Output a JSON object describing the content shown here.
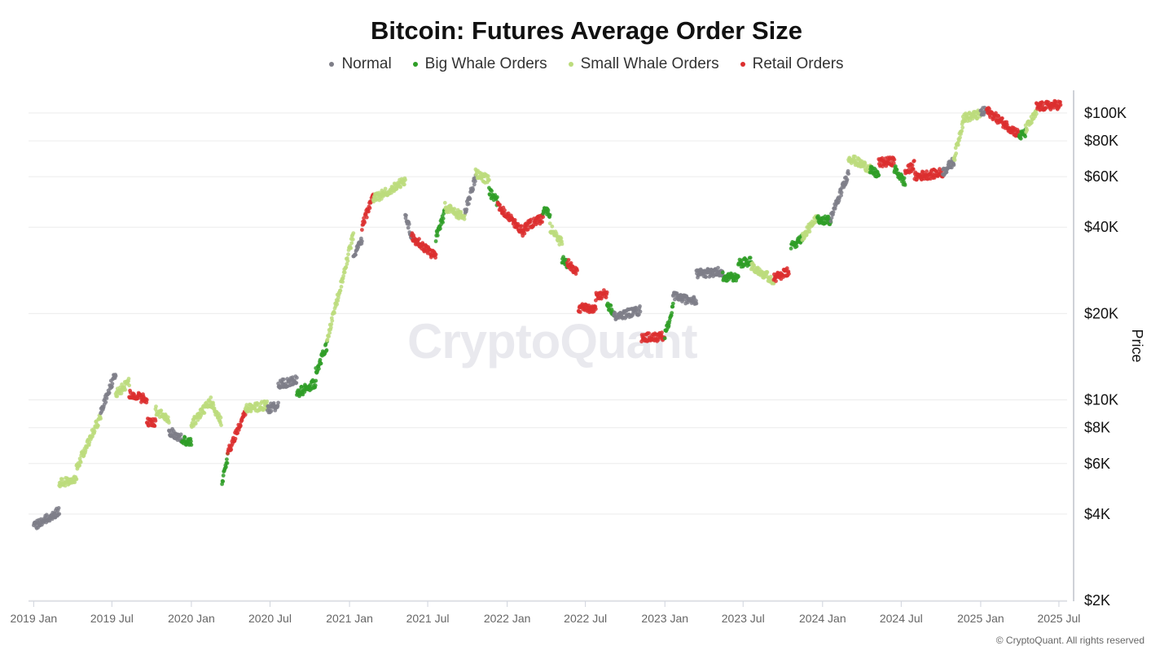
{
  "chart_data": {
    "type": "scatter",
    "title": "Bitcoin: Futures Average Order Size",
    "ylabel": "Price",
    "yscale": "log",
    "ylim": [
      2000,
      120000
    ],
    "xlim": [
      "2018-12-20",
      "2025-07-20"
    ],
    "grid": true,
    "legend_position": "top",
    "x_ticks": [
      "2019 Jan",
      "2019 Jul",
      "2020 Jan",
      "2020 Jul",
      "2021 Jan",
      "2021 Jul",
      "2022 Jan",
      "2022 Jul",
      "2023 Jan",
      "2023 Jul",
      "2024 Jan",
      "2024 Jul",
      "2025 Jan",
      "2025 Jul"
    ],
    "x_tick_dates": [
      "2019-01-01",
      "2019-07-01",
      "2020-01-01",
      "2020-07-01",
      "2021-01-01",
      "2021-07-01",
      "2022-01-01",
      "2022-07-01",
      "2023-01-01",
      "2023-07-01",
      "2024-01-01",
      "2024-07-01",
      "2025-01-01",
      "2025-07-01"
    ],
    "y_ticks": [
      {
        "value": 100000,
        "label": "$100K"
      },
      {
        "value": 80000,
        "label": "$80K"
      },
      {
        "value": 60000,
        "label": "$60K"
      },
      {
        "value": 40000,
        "label": "$40K"
      },
      {
        "value": 20000,
        "label": "$20K"
      },
      {
        "value": 10000,
        "label": "$10K"
      },
      {
        "value": 8000,
        "label": "$8K"
      },
      {
        "value": 6000,
        "label": "$6K"
      },
      {
        "value": 4000,
        "label": "$4K"
      },
      {
        "value": 2000,
        "label": "$2K"
      }
    ],
    "series": [
      {
        "name": "Normal",
        "color": "#7e7e88"
      },
      {
        "name": "Big Whale Orders",
        "color": "#2f9e27"
      },
      {
        "name": "Small Whale Orders",
        "color": "#bcdc7c"
      },
      {
        "name": "Retail Orders",
        "color": "#dc2f2f"
      }
    ],
    "segments": [
      {
        "start": "2019-01-01",
        "end": "2019-03-01",
        "from": 3600,
        "to": 4100,
        "series": 0
      },
      {
        "start": "2019-03-01",
        "end": "2019-04-10",
        "from": 5100,
        "to": 5300,
        "series": 2
      },
      {
        "start": "2019-04-10",
        "end": "2019-06-05",
        "from": 5800,
        "to": 8800,
        "series": 2
      },
      {
        "start": "2019-06-05",
        "end": "2019-07-10",
        "from": 9000,
        "to": 12500,
        "series": 0
      },
      {
        "start": "2019-07-10",
        "end": "2019-08-10",
        "from": 10500,
        "to": 11500,
        "series": 2
      },
      {
        "start": "2019-08-10",
        "end": "2019-09-20",
        "from": 10500,
        "to": 10000,
        "series": 3
      },
      {
        "start": "2019-09-20",
        "end": "2019-10-10",
        "from": 8400,
        "to": 8300,
        "series": 3
      },
      {
        "start": "2019-10-10",
        "end": "2019-11-10",
        "from": 9200,
        "to": 8500,
        "series": 2
      },
      {
        "start": "2019-11-10",
        "end": "2019-12-10",
        "from": 7800,
        "to": 7300,
        "series": 0
      },
      {
        "start": "2019-12-10",
        "end": "2020-01-01",
        "from": 7200,
        "to": 7200,
        "series": 1
      },
      {
        "start": "2020-01-01",
        "end": "2020-02-15",
        "from": 8200,
        "to": 9900,
        "series": 2
      },
      {
        "start": "2020-02-15",
        "end": "2020-03-10",
        "from": 9800,
        "to": 8400,
        "series": 2
      },
      {
        "start": "2020-03-12",
        "end": "2020-03-25",
        "from": 5200,
        "to": 6300,
        "series": 1
      },
      {
        "start": "2020-03-25",
        "end": "2020-05-05",
        "from": 6500,
        "to": 9000,
        "series": 3
      },
      {
        "start": "2020-05-05",
        "end": "2020-06-25",
        "from": 9300,
        "to": 9600,
        "series": 2
      },
      {
        "start": "2020-06-25",
        "end": "2020-07-20",
        "from": 9300,
        "to": 9600,
        "series": 0
      },
      {
        "start": "2020-07-20",
        "end": "2020-09-01",
        "from": 11300,
        "to": 11700,
        "series": 0
      },
      {
        "start": "2020-09-01",
        "end": "2020-10-15",
        "from": 10500,
        "to": 11500,
        "series": 1
      },
      {
        "start": "2020-10-15",
        "end": "2020-11-10",
        "from": 12500,
        "to": 15500,
        "series": 1
      },
      {
        "start": "2020-11-10",
        "end": "2021-01-10",
        "from": 16000,
        "to": 38000,
        "series": 2
      },
      {
        "start": "2021-01-10",
        "end": "2021-01-30",
        "from": 32000,
        "to": 36000,
        "series": 0
      },
      {
        "start": "2021-01-30",
        "end": "2021-02-25",
        "from": 40000,
        "to": 52000,
        "series": 3
      },
      {
        "start": "2021-02-25",
        "end": "2021-05-10",
        "from": 50000,
        "to": 58000,
        "series": 2
      },
      {
        "start": "2021-05-10",
        "end": "2021-05-25",
        "from": 45000,
        "to": 37000,
        "series": 0
      },
      {
        "start": "2021-05-25",
        "end": "2021-07-20",
        "from": 37000,
        "to": 31500,
        "series": 3
      },
      {
        "start": "2021-07-20",
        "end": "2021-08-10",
        "from": 37000,
        "to": 45000,
        "series": 1
      },
      {
        "start": "2021-08-10",
        "end": "2021-09-25",
        "from": 47000,
        "to": 43000,
        "series": 2
      },
      {
        "start": "2021-09-25",
        "end": "2021-10-20",
        "from": 45000,
        "to": 60000,
        "series": 0
      },
      {
        "start": "2021-10-20",
        "end": "2021-11-20",
        "from": 62000,
        "to": 58000,
        "series": 2
      },
      {
        "start": "2021-11-20",
        "end": "2021-12-10",
        "from": 53000,
        "to": 49000,
        "series": 1
      },
      {
        "start": "2021-12-10",
        "end": "2022-02-10",
        "from": 48000,
        "to": 38000,
        "series": 3
      },
      {
        "start": "2022-02-10",
        "end": "2022-03-25",
        "from": 40000,
        "to": 43000,
        "series": 3
      },
      {
        "start": "2022-03-25",
        "end": "2022-04-10",
        "from": 46000,
        "to": 44000,
        "series": 1
      },
      {
        "start": "2022-04-10",
        "end": "2022-05-08",
        "from": 40000,
        "to": 35000,
        "series": 2
      },
      {
        "start": "2022-05-08",
        "end": "2022-05-20",
        "from": 31000,
        "to": 29500,
        "series": 1
      },
      {
        "start": "2022-05-20",
        "end": "2022-06-12",
        "from": 30000,
        "to": 28000,
        "series": 3
      },
      {
        "start": "2022-06-15",
        "end": "2022-07-25",
        "from": 21000,
        "to": 20500,
        "series": 3
      },
      {
        "start": "2022-07-25",
        "end": "2022-08-20",
        "from": 23000,
        "to": 23500,
        "series": 3
      },
      {
        "start": "2022-08-20",
        "end": "2022-09-05",
        "from": 21500,
        "to": 20000,
        "series": 1
      },
      {
        "start": "2022-09-05",
        "end": "2022-11-05",
        "from": 19500,
        "to": 20500,
        "series": 0
      },
      {
        "start": "2022-11-08",
        "end": "2022-12-31",
        "from": 16500,
        "to": 16600,
        "series": 3
      },
      {
        "start": "2023-01-01",
        "end": "2023-01-20",
        "from": 16800,
        "to": 21000,
        "series": 1
      },
      {
        "start": "2023-01-20",
        "end": "2023-03-15",
        "from": 23000,
        "to": 22000,
        "series": 0
      },
      {
        "start": "2023-03-15",
        "end": "2023-05-15",
        "from": 27500,
        "to": 28000,
        "series": 0
      },
      {
        "start": "2023-05-15",
        "end": "2023-06-20",
        "from": 27000,
        "to": 26500,
        "series": 1
      },
      {
        "start": "2023-06-20",
        "end": "2023-07-20",
        "from": 30000,
        "to": 30500,
        "series": 1
      },
      {
        "start": "2023-07-20",
        "end": "2023-09-10",
        "from": 29500,
        "to": 26000,
        "series": 2
      },
      {
        "start": "2023-09-10",
        "end": "2023-10-15",
        "from": 26500,
        "to": 28000,
        "series": 3
      },
      {
        "start": "2023-10-20",
        "end": "2023-11-15",
        "from": 34000,
        "to": 37000,
        "series": 1
      },
      {
        "start": "2023-11-15",
        "end": "2023-12-20",
        "from": 37000,
        "to": 43000,
        "series": 2
      },
      {
        "start": "2023-12-20",
        "end": "2024-01-20",
        "from": 43000,
        "to": 42000,
        "series": 1
      },
      {
        "start": "2024-01-20",
        "end": "2024-03-01",
        "from": 43000,
        "to": 62000,
        "series": 0
      },
      {
        "start": "2024-03-01",
        "end": "2024-04-20",
        "from": 70000,
        "to": 64000,
        "series": 2
      },
      {
        "start": "2024-04-20",
        "end": "2024-05-10",
        "from": 63000,
        "to": 61000,
        "series": 1
      },
      {
        "start": "2024-05-10",
        "end": "2024-06-15",
        "from": 67000,
        "to": 68000,
        "series": 3
      },
      {
        "start": "2024-06-15",
        "end": "2024-07-10",
        "from": 64000,
        "to": 57000,
        "series": 1
      },
      {
        "start": "2024-07-10",
        "end": "2024-07-31",
        "from": 62000,
        "to": 66000,
        "series": 3
      },
      {
        "start": "2024-08-01",
        "end": "2024-10-05",
        "from": 60000,
        "to": 62000,
        "series": 3
      },
      {
        "start": "2024-10-05",
        "end": "2024-10-31",
        "from": 62000,
        "to": 68000,
        "series": 0
      },
      {
        "start": "2024-10-31",
        "end": "2024-11-20",
        "from": 69000,
        "to": 92000,
        "series": 2
      },
      {
        "start": "2024-11-20",
        "end": "2024-12-31",
        "from": 96000,
        "to": 99000,
        "series": 2
      },
      {
        "start": "2025-01-01",
        "end": "2025-01-15",
        "from": 100000,
        "to": 102000,
        "series": 0
      },
      {
        "start": "2025-01-15",
        "end": "2025-03-31",
        "from": 102000,
        "to": 84000,
        "series": 3
      },
      {
        "start": "2025-03-31",
        "end": "2025-04-15",
        "from": 83000,
        "to": 85000,
        "series": 1
      },
      {
        "start": "2025-04-15",
        "end": "2025-05-10",
        "from": 88000,
        "to": 100000,
        "series": 2
      },
      {
        "start": "2025-05-10",
        "end": "2025-07-05",
        "from": 105000,
        "to": 107000,
        "series": 3
      }
    ]
  },
  "watermark": "CryptoQuant",
  "copyright": "© CryptoQuant. All rights reserved"
}
